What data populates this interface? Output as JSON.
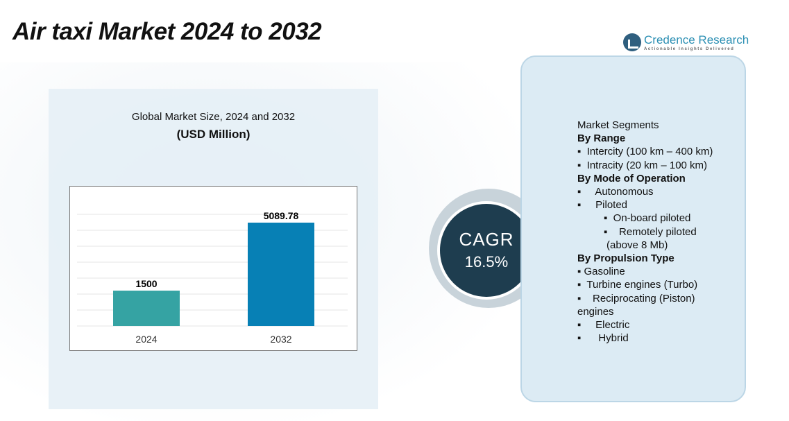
{
  "title": "Air taxi Market 2024 to 2032",
  "logo": {
    "name": "Credence Research",
    "tagline": "Actionable Insights Delivered"
  },
  "chart_subtitle": "Global Market Size, 2024 and 2032",
  "chart_unit": "(USD Million)",
  "chart_data": {
    "type": "bar",
    "title": "Global Market Size, 2024 and 2032",
    "ylabel": "USD Million",
    "categories": [
      "2024",
      "2032"
    ],
    "values": [
      1500,
      5089.78
    ],
    "value_labels": [
      "1500",
      "5089.78"
    ],
    "colors": [
      "#35a3a3",
      "#0780b5"
    ],
    "grid": true
  },
  "cagr": {
    "label": "CAGR",
    "value": "16.5%"
  },
  "segments": [
    {
      "text": "Market Segments",
      "kind": "head"
    },
    {
      "text": "By Range",
      "kind": "bold"
    },
    {
      "text": "▪  Intercity (100 km – 400 km)",
      "kind": "item"
    },
    {
      "text": "▪  Intracity (20 km – 100 km)",
      "kind": "item"
    },
    {
      "text": "By Mode of Operation",
      "kind": "bold"
    },
    {
      "text": "▪     Autonomous",
      "kind": "item"
    },
    {
      "text": "▪     Piloted",
      "kind": "item"
    },
    {
      "text": "▪  On-board piloted",
      "kind": "sub"
    },
    {
      "text": "▪    Remotely piloted",
      "kind": "sub"
    },
    {
      "text": "(above 8 Mb)",
      "kind": "cont"
    },
    {
      "text": "By Propulsion Type",
      "kind": "bold"
    },
    {
      "text": "▪ Gasoline",
      "kind": "item"
    },
    {
      "text": "▪  Turbine engines (Turbo)",
      "kind": "item"
    },
    {
      "text": "▪    Reciprocating (Piston)",
      "kind": "item"
    },
    {
      "text": "engines",
      "kind": "plain"
    },
    {
      "text": "▪     Electric",
      "kind": "item"
    },
    {
      "text": "▪      Hybrid",
      "kind": "item"
    }
  ]
}
